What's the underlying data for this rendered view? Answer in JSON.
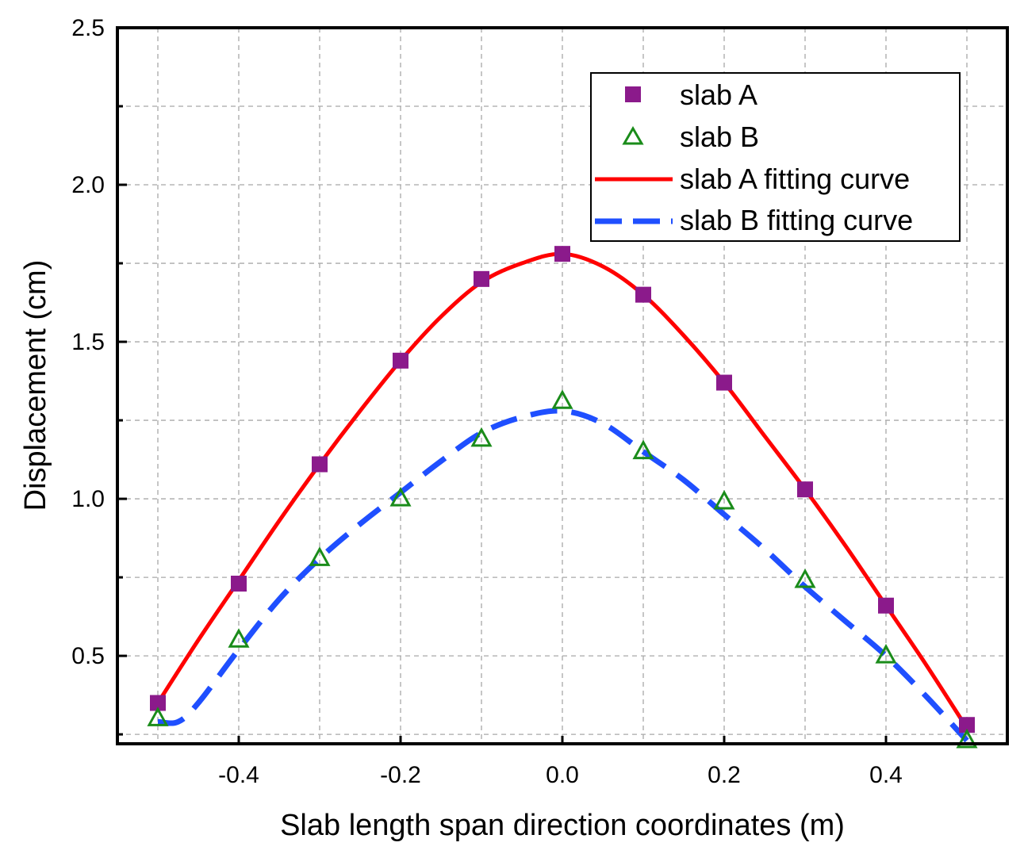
{
  "chart_data": {
    "type": "line",
    "title": "",
    "xlabel": "Slab length span direction coordinates (m)",
    "ylabel": "Displacement (cm)",
    "xlim": [
      -0.55,
      0.55
    ],
    "ylim": [
      0.22,
      2.5
    ],
    "grid": true,
    "x_ticks": [
      {
        "value": -0.4,
        "label": "-0.4"
      },
      {
        "value": -0.2,
        "label": "-0.2"
      },
      {
        "value": 0.0,
        "label": "0.0"
      },
      {
        "value": 0.2,
        "label": "0.2"
      },
      {
        "value": 0.4,
        "label": "0.4"
      }
    ],
    "y_ticks": [
      {
        "value": 0.5,
        "label": "0.5"
      },
      {
        "value": 1.0,
        "label": "1.0"
      },
      {
        "value": 1.5,
        "label": "1.5"
      },
      {
        "value": 2.0,
        "label": "2.0"
      },
      {
        "value": 2.5,
        "label": "2.5"
      }
    ],
    "x_grid": [
      -0.5,
      -0.4,
      -0.3,
      -0.2,
      -0.1,
      0.0,
      0.1,
      0.2,
      0.3,
      0.4,
      0.5
    ],
    "y_grid": [
      0.25,
      0.5,
      0.75,
      1.0,
      1.25,
      1.5,
      1.75,
      2.0,
      2.25
    ],
    "legend_position": "top-right",
    "series": [
      {
        "name": "slab A",
        "kind": "markers",
        "marker": "square",
        "color": "#8B1A8B",
        "x": [
          -0.5,
          -0.4,
          -0.3,
          -0.2,
          -0.1,
          0.0,
          0.1,
          0.2,
          0.3,
          0.4,
          0.5
        ],
        "y": [
          0.35,
          0.73,
          1.11,
          1.44,
          1.7,
          1.78,
          1.65,
          1.37,
          1.03,
          0.66,
          0.28
        ]
      },
      {
        "name": "slab B",
        "kind": "markers",
        "marker": "triangle",
        "color": "#1A8C1A",
        "x": [
          -0.5,
          -0.4,
          -0.3,
          -0.2,
          -0.1,
          0.0,
          0.1,
          0.2,
          0.3,
          0.4,
          0.5
        ],
        "y": [
          0.3,
          0.55,
          0.81,
          1.0,
          1.19,
          1.31,
          1.15,
          0.99,
          0.74,
          0.5,
          0.23
        ]
      },
      {
        "name": "slab A fitting curve",
        "kind": "line",
        "style": "solid",
        "color": "#FF0000",
        "x": [
          -0.5,
          -0.45,
          -0.4,
          -0.35,
          -0.3,
          -0.25,
          -0.2,
          -0.15,
          -0.1,
          -0.05,
          0.0,
          0.05,
          0.1,
          0.15,
          0.2,
          0.25,
          0.3,
          0.35,
          0.4,
          0.45,
          0.5
        ],
        "y": [
          0.35,
          0.55,
          0.74,
          0.93,
          1.11,
          1.28,
          1.44,
          1.58,
          1.69,
          1.75,
          1.78,
          1.74,
          1.65,
          1.52,
          1.37,
          1.2,
          1.03,
          0.85,
          0.66,
          0.47,
          0.27
        ]
      },
      {
        "name": "slab B fitting curve",
        "kind": "line",
        "style": "dashed",
        "color": "#1F4FFF",
        "x": [
          -0.5,
          -0.475,
          -0.45,
          -0.4,
          -0.35,
          -0.3,
          -0.25,
          -0.2,
          -0.15,
          -0.1,
          -0.05,
          0.0,
          0.05,
          0.1,
          0.15,
          0.2,
          0.25,
          0.3,
          0.35,
          0.4,
          0.45,
          0.5
        ],
        "y": [
          0.29,
          0.29,
          0.35,
          0.52,
          0.68,
          0.81,
          0.92,
          1.02,
          1.12,
          1.21,
          1.26,
          1.28,
          1.24,
          1.15,
          1.06,
          0.95,
          0.84,
          0.72,
          0.61,
          0.5,
          0.37,
          0.23
        ]
      }
    ]
  }
}
